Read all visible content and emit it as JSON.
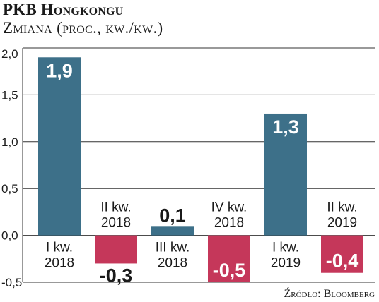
{
  "header": {
    "title": "PKB Hongkongu",
    "subtitle": "Zmiana (proc., kw./kw.)"
  },
  "footer": {
    "source": "Źródło: Bloomberg"
  },
  "chart_data": {
    "type": "bar",
    "title": "PKB Hongkongu",
    "subtitle": "Zmiana (proc., kw./kw.)",
    "categories": [
      "I kw.\n2018",
      "II kw.\n2018",
      "III kw.\n2018",
      "IV kw.\n2018",
      "I kw.\n2019",
      "II kw.\n2019"
    ],
    "values": [
      1.9,
      -0.3,
      0.1,
      -0.5,
      1.3,
      -0.4
    ],
    "value_labels": [
      "1,9",
      "-0,3",
      "0,1",
      "-0,5",
      "1,3",
      "-0,4"
    ],
    "ylim": [
      -0.5,
      2.0
    ],
    "yticks": [
      2.0,
      1.5,
      1.0,
      0.5,
      0.0,
      -0.5
    ],
    "ytick_labels": [
      "2,0",
      "1,5",
      "1,0",
      "0,5",
      "0,0",
      "-0,5"
    ],
    "grid": true,
    "colors": {
      "positive": "#3d7089",
      "negative": "#c5375a"
    }
  }
}
